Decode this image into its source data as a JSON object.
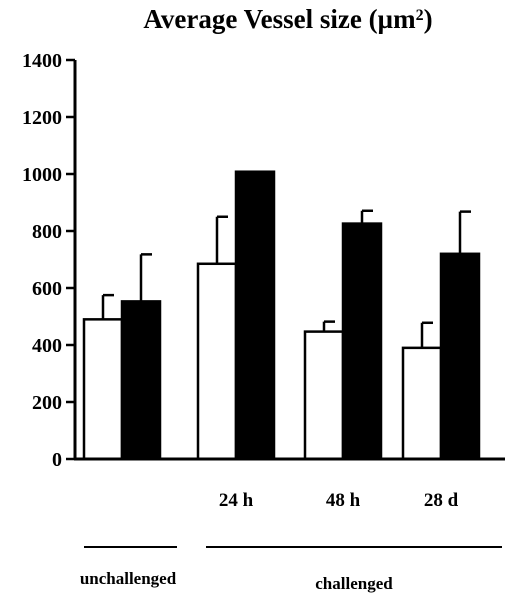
{
  "chart_data": {
    "type": "bar",
    "title": "Average Vessel size (µm²)",
    "title_main": "Average Vessel size (µm",
    "title_sup": "2",
    "title_end": ")",
    "ylim": [
      0,
      1400
    ],
    "yticks": [
      0,
      200,
      400,
      600,
      800,
      1000,
      1200,
      1400
    ],
    "ytick_labels": [
      "0",
      "200",
      "400",
      "600",
      "800",
      "1000",
      "1200",
      "1400"
    ],
    "grid": false,
    "categories": [
      "",
      "24 h",
      "48 h",
      "28 d"
    ],
    "series": [
      {
        "values": [
          490,
          685,
          447,
          390
        ],
        "errors": [
          85,
          165,
          35,
          88
        ],
        "color": "#ffffff"
      },
      {
        "values": [
          553,
          1008,
          826,
          720
        ],
        "errors": [
          165,
          0,
          45,
          148
        ],
        "color": "#000000"
      }
    ],
    "groups": [
      "unchallenged",
      "challenged"
    ]
  }
}
